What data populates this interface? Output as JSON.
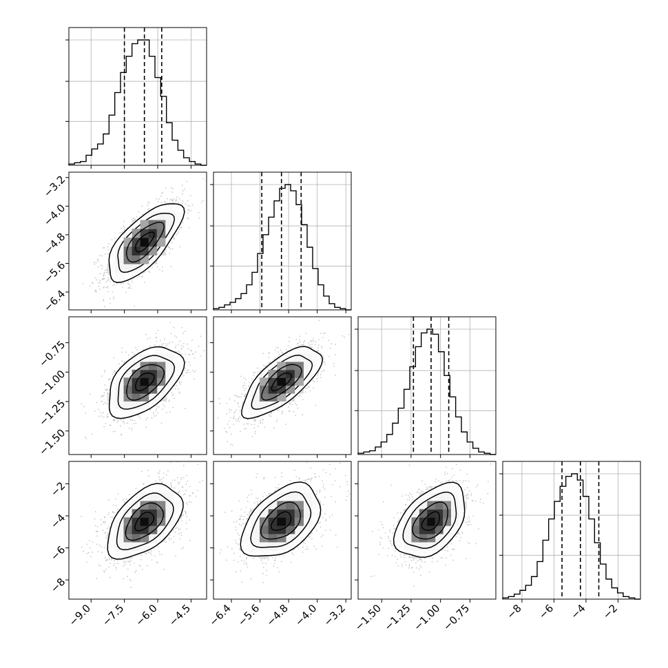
{
  "chart_data": {
    "type": "corner",
    "title": "",
    "params": [
      {
        "range": [
          -10.0,
          -3.8
        ],
        "ticks": [
          -9.0,
          -7.5,
          -6.0,
          -4.5
        ],
        "tick_labels": [
          "−9.0",
          "−7.5",
          "−6.0",
          "−4.5"
        ],
        "quantiles": [
          -7.5,
          -6.6,
          -5.82
        ],
        "hist": [
          0.01,
          0.02,
          0.03,
          0.08,
          0.13,
          0.17,
          0.25,
          0.4,
          0.58,
          0.74,
          0.87,
          0.97,
          1.0,
          1.0,
          0.87,
          0.7,
          0.55,
          0.34,
          0.2,
          0.12,
          0.06,
          0.03,
          0.01,
          0.0
        ]
      },
      {
        "range": [
          -6.9,
          -3.05
        ],
        "ticks": [
          -6.4,
          -5.6,
          -4.8,
          -4.0,
          -3.2
        ],
        "tick_labels": [
          "−6.4",
          "−5.6",
          "−4.8",
          "−4.0",
          "−3.2"
        ],
        "quantiles": [
          -5.55,
          -5.0,
          -4.45
        ],
        "hist": [
          0.01,
          0.02,
          0.04,
          0.06,
          0.09,
          0.13,
          0.2,
          0.3,
          0.45,
          0.6,
          0.74,
          0.87,
          0.97,
          1.0,
          0.95,
          0.84,
          0.68,
          0.5,
          0.33,
          0.2,
          0.11,
          0.05,
          0.02,
          0.01,
          0.0
        ]
      },
      {
        "range": [
          -1.7,
          -0.53
        ],
        "ticks": [
          -1.5,
          -1.25,
          -1.0,
          -0.75
        ],
        "tick_labels": [
          "−1.50",
          "−1.25",
          "−1.00",
          "−0.75"
        ],
        "quantiles": [
          -1.23,
          -1.08,
          -0.93
        ],
        "hist": [
          0.01,
          0.02,
          0.03,
          0.06,
          0.1,
          0.16,
          0.25,
          0.37,
          0.52,
          0.7,
          0.86,
          0.97,
          1.0,
          0.96,
          0.82,
          0.63,
          0.46,
          0.3,
          0.18,
          0.1,
          0.05,
          0.02,
          0.01,
          0.0
        ]
      },
      {
        "range": [
          -9.2,
          -0.6
        ],
        "ticks": [
          -8,
          -6,
          -4,
          -2
        ],
        "tick_labels": [
          "−8",
          "−6",
          "−4",
          "−2"
        ],
        "quantiles": [
          -5.5,
          -4.35,
          -3.2
        ],
        "hist": [
          0.01,
          0.02,
          0.04,
          0.07,
          0.11,
          0.18,
          0.3,
          0.47,
          0.64,
          0.78,
          0.9,
          0.98,
          1.0,
          0.95,
          0.82,
          0.64,
          0.45,
          0.28,
          0.16,
          0.09,
          0.05,
          0.02,
          0.01,
          0.0
        ]
      }
    ],
    "correlations": {
      "1-0": 0.7,
      "2-0": 0.5,
      "2-1": 0.7,
      "3-0": 0.5,
      "3-1": 0.45,
      "3-2": 0.45
    },
    "contour_levels_sigma": [
      0.5,
      1.0,
      1.5,
      2.0
    ],
    "grid": true,
    "colors": {
      "line": "#000000",
      "grid": "#b0b0b0",
      "scatter": "#9a9a9a",
      "density_dark": "#000000"
    }
  }
}
